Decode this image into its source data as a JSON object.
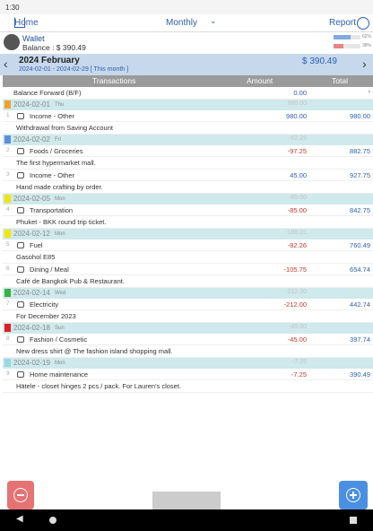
{
  "status": {
    "time": "1:30"
  },
  "toolbar": {
    "home": "Home",
    "period": "Monthly",
    "report": "Report"
  },
  "wallet": {
    "name": "Wallet",
    "balance": "Balance : $ 390.49",
    "bars": [
      {
        "value": 62,
        "label": "62%",
        "color": "#7fa9e3"
      },
      {
        "value": 38,
        "label": "38%",
        "color": "#e98585"
      }
    ]
  },
  "period": {
    "month": "2024 February",
    "range": "2024-02-01 - 2024-02-29 [ This month ]",
    "balance": "$ 390.49"
  },
  "table": {
    "headers": [
      "Transactions",
      "Amount",
      "Total"
    ],
    "forward": {
      "label": "Balance Forward (B/F)",
      "amount": "0.00"
    },
    "days": [
      {
        "date": "2024-02-01",
        "weekday": "Thu",
        "total": "980.00",
        "flag": "#f0a030",
        "items": [
          {
            "no": "1",
            "category": "Income - Other",
            "amount": "980.00",
            "total": "980.00",
            "note": "Withdrawal from Saving Account"
          }
        ]
      },
      {
        "date": "2024-02-02",
        "weekday": "Fri",
        "total": "-52.25",
        "flag": "#5b8fd9",
        "items": [
          {
            "no": "2",
            "category": "Foods / Groceries",
            "amount": "-97.25",
            "total": "882.75",
            "note": "The first hypermarket mall."
          },
          {
            "no": "3",
            "category": "Income - Other",
            "amount": "45.00",
            "total": "927.75",
            "note": "Hand made crafting by order."
          }
        ]
      },
      {
        "date": "2024-02-05",
        "weekday": "Mon",
        "total": "-85.00",
        "flag": "#f2e600",
        "items": [
          {
            "no": "4",
            "category": "Transportation",
            "amount": "-85.00",
            "total": "842.75",
            "note": "Phuket - BKK round trip ticket."
          }
        ]
      },
      {
        "date": "2024-02-12",
        "weekday": "Mon",
        "total": "-188.01",
        "flag": "#f2e600",
        "items": [
          {
            "no": "5",
            "category": "Fuel",
            "amount": "-82.26",
            "total": "760.49",
            "note": "Gasohol E85"
          },
          {
            "no": "6",
            "category": "Dining / Meal",
            "amount": "-105.75",
            "total": "654.74",
            "note": "Café de Bangkok Pub & Restaurant."
          }
        ]
      },
      {
        "date": "2024-02-14",
        "weekday": "Wed",
        "total": "-212.00",
        "flag": "#3cb043",
        "items": [
          {
            "no": "7",
            "category": "Electricity",
            "amount": "-212.00",
            "total": "442.74",
            "note": "For December 2023"
          }
        ]
      },
      {
        "date": "2024-02-18",
        "weekday": "Sun",
        "total": "-45.00",
        "flag": "#e02020",
        "items": [
          {
            "no": "8",
            "category": "Fashion / Cosmetic",
            "amount": "-45.00",
            "total": "397.74",
            "note": "New dress shirt @ The fashion island shopping mall."
          }
        ]
      },
      {
        "date": "2024-02-19",
        "weekday": "Mon",
        "total": "-7.25",
        "flag": "#9ad8e0",
        "items": [
          {
            "no": "9",
            "category": "Home maintenance",
            "amount": "-7.25",
            "total": "390.49",
            "note": "Hätele - closet hinges 2 pcs / pack. For Lauren's closet."
          }
        ]
      }
    ]
  }
}
